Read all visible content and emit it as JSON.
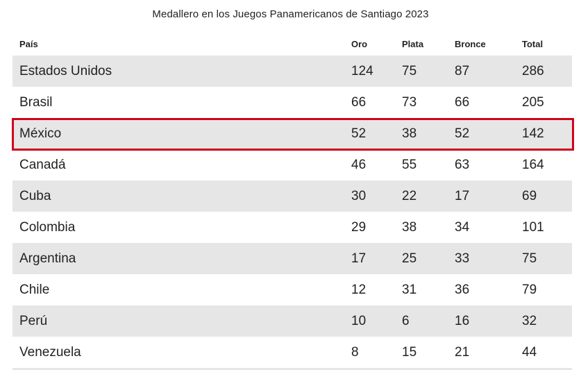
{
  "chart_data": {
    "type": "table",
    "title": "Medallero en los Juegos Panamericanos de Santiago 2023",
    "columns": [
      "País",
      "Oro",
      "Plata",
      "Bronce",
      "Total"
    ],
    "rows": [
      {
        "pais": "Estados Unidos",
        "oro": "124",
        "plata": "75",
        "bronce": "87",
        "total": "286"
      },
      {
        "pais": "Brasil",
        "oro": "66",
        "plata": "73",
        "bronce": "66",
        "total": "205"
      },
      {
        "pais": "México",
        "oro": "52",
        "plata": "38",
        "bronce": "52",
        "total": "142"
      },
      {
        "pais": "Canadá",
        "oro": "46",
        "plata": "55",
        "bronce": "63",
        "total": "164"
      },
      {
        "pais": "Cuba",
        "oro": "30",
        "plata": "22",
        "bronce": "17",
        "total": "69"
      },
      {
        "pais": "Colombia",
        "oro": "29",
        "plata": "38",
        "bronce": "34",
        "total": "101"
      },
      {
        "pais": "Argentina",
        "oro": "17",
        "plata": "25",
        "bronce": "33",
        "total": "75"
      },
      {
        "pais": "Chile",
        "oro": "12",
        "plata": "31",
        "bronce": "36",
        "total": "79"
      },
      {
        "pais": "Perú",
        "oro": "10",
        "plata": "6",
        "bronce": "16",
        "total": "32"
      },
      {
        "pais": "Venezuela",
        "oro": "8",
        "plata": "15",
        "bronce": "21",
        "total": "44"
      }
    ],
    "highlighted_row": "México"
  },
  "colors": {
    "highlight_border": "#d0021b",
    "row_shade": "#e6e6e6",
    "text": "#222222"
  }
}
